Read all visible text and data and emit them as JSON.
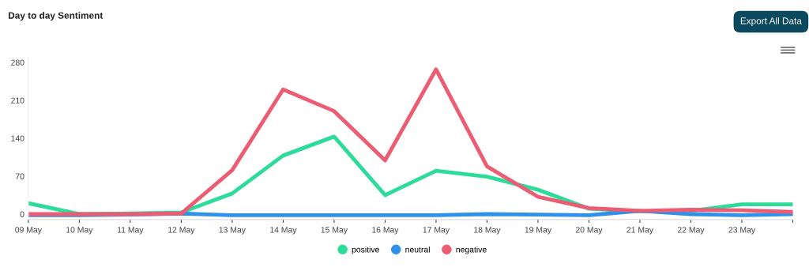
{
  "chart_data": {
    "type": "line",
    "title": "Day to day Sentiment",
    "annotations": [
      "Export All Data"
    ],
    "categories": [
      "09 May",
      "10 May",
      "11 May",
      "12 May",
      "13 May",
      "14 May",
      "15 May",
      "16 May",
      "17 May",
      "18 May",
      "19 May",
      "20 May",
      "21 May",
      "22 May",
      "23 May",
      null
    ],
    "series": [
      {
        "name": "positive",
        "color": "#2ddc9a",
        "values": [
          20,
          0,
          1,
          3,
          38,
          108,
          143,
          35,
          80,
          69,
          45,
          10,
          5,
          6,
          18,
          18
        ]
      },
      {
        "name": "neutral",
        "color": "#2f92e8",
        "values": [
          -2,
          -2,
          -1,
          1,
          -2,
          -2,
          -2,
          -2,
          -2,
          0,
          -1,
          -2,
          6,
          0,
          -2,
          0
        ]
      },
      {
        "name": "negative",
        "color": "#ec5d73",
        "values": [
          0,
          0,
          0,
          1,
          81,
          230,
          190,
          99,
          267,
          88,
          32,
          11,
          6,
          8,
          7,
          4
        ]
      }
    ],
    "ylim": [
      -10,
      290
    ],
    "yticks": [
      0,
      70,
      140,
      210,
      280
    ],
    "grid": false,
    "legend": "bottom",
    "marker": "none",
    "line_style": "solid"
  }
}
